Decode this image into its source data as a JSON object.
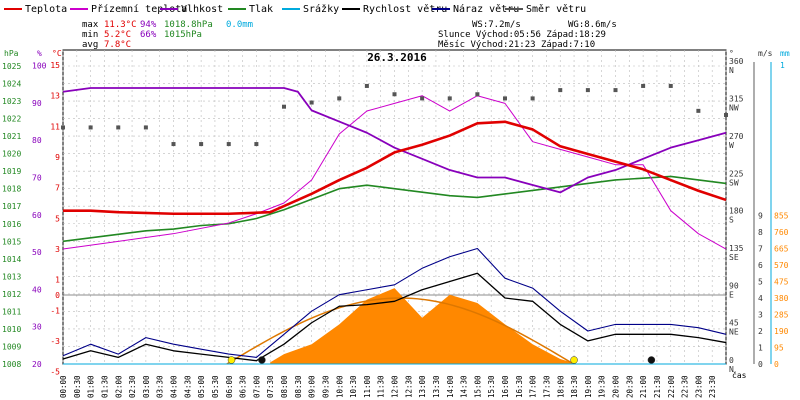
{
  "legend": [
    {
      "name": "Teplota",
      "color": "#e00000"
    },
    {
      "name": "Přízemní teplota",
      "color": "#cc00cc"
    },
    {
      "name": "Vlhkost",
      "color": "#8800bb"
    },
    {
      "name": "Tlak",
      "color": "#228822"
    },
    {
      "name": "Srážky",
      "color": "#00aadd"
    },
    {
      "name": "Rychlost větru",
      "color": "#000000"
    },
    {
      "name": "Náraz větru",
      "color": "#000088"
    },
    {
      "name": "Směr větru",
      "color": "#555555"
    }
  ],
  "stats": {
    "max_label": "max",
    "max_temp": "11.3°C",
    "max_hum": "94%",
    "max_press": "1018.8hPa",
    "max_rain": "0.0mm",
    "min_label": "min",
    "min_temp": "5.2°C",
    "min_hum": "66%",
    "min_press": "1015hPa",
    "avg_label": "avg",
    "avg_temp": "7.8°C"
  },
  "info": {
    "ws": "WS:7.2m/s",
    "wg": "WG:8.6m/s",
    "sun": "Slunce Východ:05:56  Západ:18:29",
    "moon": "Měsíc  Východ:21:23  Západ:7:10"
  },
  "title": "26.3.2016",
  "colors": {
    "temp": "#e00000",
    "ground": "#cc00cc",
    "hum": "#8800bb",
    "press": "#228822",
    "rain": "#00aadd",
    "wind": "#000000",
    "gust": "#000088",
    "dir": "#555555",
    "solar": "#ff8800",
    "solar_curve": "#dd7700"
  },
  "chart_data": {
    "type": "line",
    "title": "26.3.2016",
    "x_unit": "čas",
    "x_ticks": [
      "00:00",
      "00:30",
      "01:00",
      "01:30",
      "02:00",
      "02:30",
      "03:00",
      "03:30",
      "04:00",
      "04:30",
      "05:00",
      "05:30",
      "06:00",
      "06:30",
      "07:00",
      "07:30",
      "08:00",
      "08:30",
      "09:00",
      "09:30",
      "10:00",
      "10:30",
      "11:00",
      "11:30",
      "12:00",
      "12:30",
      "13:00",
      "13:30",
      "14:00",
      "14:30",
      "15:00",
      "15:30",
      "16:00",
      "16:30",
      "17:00",
      "17:30",
      "18:00",
      "18:30",
      "19:00",
      "19:30",
      "20:00",
      "20:30",
      "21:00",
      "21:30",
      "22:00",
      "22:30",
      "23:00",
      "23:30"
    ],
    "axes": {
      "pressure": {
        "unit": "hPa",
        "ticks": [
          "1008",
          "1009",
          "1010",
          "1011",
          "1012",
          "1013",
          "1014",
          "1015",
          "1016",
          "1017",
          "1018",
          "1019",
          "1020",
          "1021",
          "1022",
          "1023",
          "1024",
          "1025"
        ]
      },
      "humidity": {
        "unit": "%",
        "ticks": [
          "20",
          "30",
          "40",
          "50",
          "60",
          "70",
          "80",
          "90",
          "100"
        ]
      },
      "temperature": {
        "unit": "°C",
        "ticks": [
          "-5",
          "-3",
          "-1",
          "0",
          "1",
          "3",
          "5",
          "7",
          "9",
          "11",
          "13",
          "15"
        ]
      },
      "direction": {
        "unit": "°",
        "ticks": [
          "0 N",
          "45 NE",
          "90 E",
          "135 SE",
          "180 S",
          "225 SW",
          "270 W",
          "315 NW",
          "360 N"
        ]
      },
      "wind": {
        "unit": "m/s",
        "ticks": [
          "0",
          "1",
          "2",
          "3",
          "4",
          "5",
          "6",
          "7",
          "8",
          "9"
        ]
      },
      "rain": {
        "unit": "mm",
        "ticks": [
          "0",
          "95",
          "190",
          "285",
          "380",
          "475",
          "570",
          "665",
          "760",
          "855"
        ],
        "top": "1"
      }
    },
    "series": [
      {
        "name": "Teplota",
        "x": [
          0,
          1,
          2,
          4,
          6,
          7.5,
          8,
          9,
          10,
          11,
          12,
          13,
          14,
          15,
          16,
          17,
          18,
          19,
          20,
          21,
          22,
          23,
          24
        ],
        "values": [
          5.5,
          5.5,
          5.4,
          5.3,
          5.3,
          5.4,
          5.8,
          6.6,
          7.5,
          8.3,
          9.3,
          9.8,
          10.4,
          11.2,
          11.3,
          10.8,
          9.7,
          9.2,
          8.7,
          8.2,
          7.5,
          6.8,
          6.2
        ]
      },
      {
        "name": "Vlhkost",
        "x": [
          0,
          1,
          2,
          4,
          6,
          7,
          8,
          8.5,
          9,
          10,
          11,
          12,
          13,
          14,
          15,
          16,
          17,
          18,
          19,
          20,
          21,
          22,
          23,
          24
        ],
        "values": [
          93,
          94,
          94,
          94,
          94,
          94,
          94,
          93,
          88,
          85,
          82,
          78,
          75,
          72,
          70,
          70,
          68,
          66,
          70,
          72,
          75,
          78,
          80,
          82
        ]
      },
      {
        "name": "Tlak",
        "x": [
          0,
          1,
          2,
          3,
          4,
          5,
          6,
          7,
          8,
          9,
          10,
          11,
          12,
          13,
          14,
          15,
          16,
          17,
          18,
          19,
          20,
          21,
          22,
          23,
          24
        ],
        "values": [
          1015,
          1015.2,
          1015.4,
          1015.6,
          1015.7,
          1015.9,
          1016,
          1016.3,
          1016.8,
          1017.4,
          1018,
          1018.2,
          1018,
          1017.8,
          1017.6,
          1017.5,
          1017.7,
          1017.9,
          1018.1,
          1018.3,
          1018.5,
          1018.6,
          1018.7,
          1018.5,
          1018.3
        ]
      },
      {
        "name": "Přízemní teplota",
        "x": [
          0,
          2,
          4,
          6,
          7,
          8,
          9,
          10,
          11,
          12,
          13,
          14,
          15,
          16,
          17,
          18,
          19,
          20,
          21,
          22,
          23,
          24
        ],
        "values": [
          3,
          3.5,
          4,
          4.7,
          5.3,
          6,
          7.5,
          10.5,
          12,
          12.5,
          13,
          12,
          13,
          12.5,
          10,
          9.5,
          9,
          8.5,
          8.5,
          5.5,
          4,
          3
        ]
      },
      {
        "name": "Rychlost větru",
        "x": [
          0,
          1,
          2,
          3,
          4,
          5,
          6,
          7,
          8,
          9,
          10,
          11,
          12,
          13,
          14,
          15,
          16,
          17,
          18,
          19,
          20,
          21,
          22,
          23,
          24
        ],
        "values": [
          0.3,
          0.8,
          0.4,
          1.2,
          0.8,
          0.6,
          0.4,
          0.2,
          1.2,
          2.5,
          3.5,
          3.6,
          3.8,
          4.5,
          5,
          5.5,
          4,
          3.8,
          2.4,
          1.4,
          1.8,
          1.8,
          1.8,
          1.6,
          1.3
        ]
      },
      {
        "name": "Náraz větru",
        "x": [
          0,
          1,
          2,
          3,
          4,
          5,
          6,
          7,
          8,
          9,
          10,
          11,
          12,
          13,
          14,
          15,
          16,
          17,
          18,
          19,
          20,
          21,
          22,
          23,
          24
        ],
        "values": [
          0.5,
          1.2,
          0.6,
          1.6,
          1.2,
          0.9,
          0.6,
          0.4,
          1.8,
          3.2,
          4.2,
          4.5,
          4.8,
          5.8,
          6.5,
          7,
          5.2,
          4.6,
          3.2,
          2,
          2.4,
          2.4,
          2.4,
          2.2,
          1.8
        ]
      },
      {
        "name": "Směr větru",
        "x": [
          0,
          1,
          2,
          3,
          4,
          5,
          6,
          7,
          8,
          9,
          10,
          11,
          12,
          13,
          14,
          15,
          16,
          17,
          18,
          19,
          20,
          21,
          22,
          23,
          24
        ],
        "values": [
          285,
          285,
          285,
          285,
          265,
          265,
          265,
          265,
          310,
          315,
          320,
          335,
          325,
          320,
          320,
          325,
          320,
          320,
          330,
          330,
          330,
          335,
          335,
          305,
          300
        ]
      },
      {
        "name": "Srážky",
        "x": [
          0,
          24
        ],
        "values": [
          0,
          0
        ]
      }
    ],
    "solar": {
      "x": [
        7.5,
        8,
        9,
        10,
        11,
        12,
        13,
        14,
        15,
        16,
        17,
        18,
        18.5
      ],
      "values": [
        0.1,
        0.6,
        1.2,
        2.4,
        3.9,
        4.6,
        2.8,
        4.2,
        3.7,
        2.4,
        1.2,
        0.3,
        0.05
      ],
      "curve_peak": 4.0,
      "sunrise_h": 5.93,
      "sunset_h": 18.48
    },
    "markers": [
      {
        "x": 6.1,
        "color": "#ffee00"
      },
      {
        "x": 7.2,
        "color": "#111111"
      },
      {
        "x": 18.5,
        "color": "#ffee00"
      },
      {
        "x": 21.3,
        "color": "#111111"
      }
    ]
  }
}
